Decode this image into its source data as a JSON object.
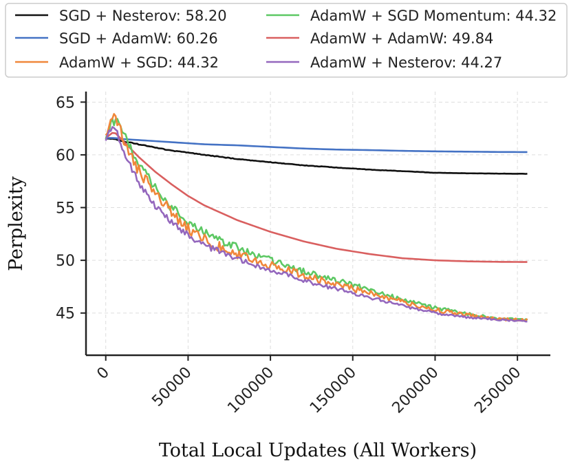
{
  "chart_data": {
    "type": "line",
    "title": "",
    "xlabel": "Total Local Updates (All Workers)",
    "ylabel": "Perplexity",
    "xlim": [
      -12000,
      270000
    ],
    "ylim": [
      41,
      66
    ],
    "xticks": [
      0,
      50000,
      100000,
      150000,
      200000,
      250000
    ],
    "xtick_labels": [
      "0",
      "50000",
      "100000",
      "150000",
      "200000",
      "250000"
    ],
    "yticks": [
      45,
      50,
      55,
      60,
      65
    ],
    "ytick_labels": [
      "45",
      "50",
      "55",
      "60",
      "65"
    ],
    "grid": true,
    "legend_position": "top",
    "series": [
      {
        "name": "SGD + Nesterov: 58.20",
        "color": "#111111",
        "final": 58.2,
        "x": [
          0,
          5000,
          10000,
          20000,
          40000,
          60000,
          80000,
          100000,
          120000,
          140000,
          160000,
          180000,
          200000,
          220000,
          240000,
          256000
        ],
        "y": [
          61.6,
          61.5,
          61.3,
          61.0,
          60.4,
          60.0,
          59.6,
          59.3,
          59.0,
          58.8,
          58.6,
          58.45,
          58.3,
          58.25,
          58.22,
          58.2
        ],
        "noise": 0.04
      },
      {
        "name": "SGD + AdamW: 60.26",
        "color": "#4472c4",
        "final": 60.26,
        "x": [
          0,
          5000,
          10000,
          20000,
          40000,
          60000,
          80000,
          100000,
          120000,
          140000,
          160000,
          180000,
          200000,
          220000,
          240000,
          256000
        ],
        "y": [
          61.6,
          61.6,
          61.5,
          61.4,
          61.2,
          61.0,
          60.9,
          60.75,
          60.6,
          60.5,
          60.45,
          60.38,
          60.33,
          60.3,
          60.27,
          60.26
        ],
        "noise": 0.0
      },
      {
        "name": "AdamW + SGD: 44.32",
        "color": "#f0873a",
        "final": 44.32,
        "x": [
          0,
          4000,
          7000,
          12000,
          20000,
          30000,
          40000,
          50000,
          60000,
          70000,
          80000,
          90000,
          100000,
          120000,
          140000,
          160000,
          180000,
          200000,
          220000,
          240000,
          256000
        ],
        "y": [
          61.6,
          63.5,
          63.2,
          61.0,
          58.5,
          56.5,
          54.5,
          53.0,
          52.0,
          51.2,
          50.6,
          50.0,
          49.5,
          48.6,
          47.7,
          46.9,
          46.1,
          45.3,
          44.8,
          44.4,
          44.32
        ],
        "noise": 0.6
      },
      {
        "name": "AdamW + SGD Momentum: 44.32",
        "color": "#5cc863",
        "final": 44.32,
        "x": [
          0,
          4000,
          7000,
          12000,
          20000,
          30000,
          40000,
          50000,
          60000,
          70000,
          80000,
          90000,
          100000,
          120000,
          140000,
          160000,
          180000,
          200000,
          220000,
          240000,
          256000
        ],
        "y": [
          61.6,
          63.0,
          63.6,
          61.6,
          59.0,
          57.0,
          55.0,
          53.6,
          52.6,
          51.8,
          51.2,
          50.5,
          50.0,
          49.0,
          48.1,
          47.2,
          46.3,
          45.5,
          44.9,
          44.45,
          44.32
        ],
        "noise": 0.5
      },
      {
        "name": "AdamW + AdamW: 49.84",
        "color": "#d95f5f",
        "final": 49.84,
        "x": [
          0,
          5000,
          10000,
          20000,
          30000,
          40000,
          50000,
          60000,
          80000,
          100000,
          120000,
          140000,
          160000,
          180000,
          200000,
          220000,
          240000,
          256000
        ],
        "y": [
          61.6,
          62.2,
          61.4,
          59.8,
          58.4,
          57.2,
          56.1,
          55.2,
          53.8,
          52.7,
          51.8,
          51.1,
          50.6,
          50.2,
          50.0,
          49.9,
          49.85,
          49.84
        ],
        "noise": 0.0
      },
      {
        "name": "AdamW + Nesterov: 44.27",
        "color": "#9467bd",
        "final": 44.27,
        "x": [
          0,
          4000,
          7000,
          12000,
          20000,
          30000,
          40000,
          50000,
          60000,
          70000,
          80000,
          90000,
          100000,
          120000,
          140000,
          160000,
          180000,
          200000,
          220000,
          240000,
          256000
        ],
        "y": [
          61.6,
          62.6,
          62.0,
          59.8,
          57.4,
          55.2,
          53.6,
          52.4,
          51.4,
          50.8,
          50.1,
          49.6,
          49.1,
          48.1,
          47.3,
          46.5,
          45.7,
          45.0,
          44.6,
          44.35,
          44.27
        ],
        "noise": 0.35
      }
    ]
  }
}
